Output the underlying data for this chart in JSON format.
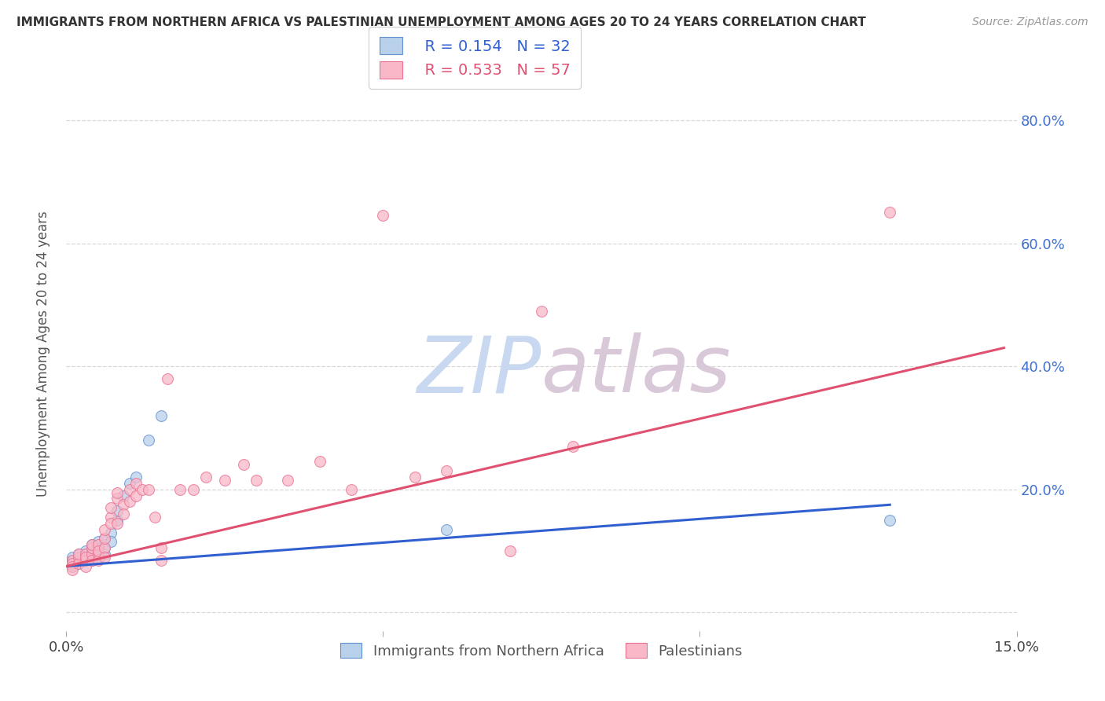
{
  "title": "IMMIGRANTS FROM NORTHERN AFRICA VS PALESTINIAN UNEMPLOYMENT AMONG AGES 20 TO 24 YEARS CORRELATION CHART",
  "source": "Source: ZipAtlas.com",
  "ylabel": "Unemployment Among Ages 20 to 24 years",
  "right_ytick_vals": [
    0.8,
    0.6,
    0.4,
    0.2
  ],
  "right_ytick_labels": [
    "80.0%",
    "60.0%",
    "40.0%",
    "20.0%"
  ],
  "legend_blue_label": "Immigrants from Northern Africa",
  "legend_pink_label": "Palestinians",
  "legend_blue_R": "R = 0.154",
  "legend_blue_N": "N = 32",
  "legend_pink_R": "R = 0.533",
  "legend_pink_N": "N = 57",
  "blue_face_color": "#b8d0ea",
  "pink_face_color": "#f8b8c8",
  "blue_edge_color": "#6090d0",
  "pink_edge_color": "#e87090",
  "blue_line_color": "#3060d0",
  "pink_line_color": "#e05070",
  "title_color": "#333333",
  "source_color": "#999999",
  "axis_label_color": "#555555",
  "right_tick_color": "#4070d0",
  "watermark_zip_color": "#c8d8f0",
  "watermark_atlas_color": "#d8c8d8",
  "xlim": [
    0.0,
    0.15
  ],
  "ylim": [
    -0.03,
    0.87
  ],
  "xtick_positions": [
    0.0,
    0.05,
    0.1,
    0.15
  ],
  "xtick_labels": [
    "0.0%",
    "",
    "",
    "15.0%"
  ],
  "ytick_positions": [
    0.0,
    0.2,
    0.4,
    0.6,
    0.8
  ],
  "blue_scatter_x": [
    0.001,
    0.001,
    0.001,
    0.002,
    0.002,
    0.002,
    0.003,
    0.003,
    0.003,
    0.003,
    0.004,
    0.004,
    0.004,
    0.004,
    0.005,
    0.005,
    0.005,
    0.005,
    0.006,
    0.006,
    0.006,
    0.007,
    0.007,
    0.008,
    0.008,
    0.009,
    0.01,
    0.011,
    0.013,
    0.015,
    0.06,
    0.13
  ],
  "blue_scatter_y": [
    0.085,
    0.09,
    0.075,
    0.095,
    0.085,
    0.08,
    0.09,
    0.095,
    0.085,
    0.1,
    0.09,
    0.1,
    0.085,
    0.11,
    0.095,
    0.105,
    0.09,
    0.115,
    0.095,
    0.105,
    0.12,
    0.13,
    0.115,
    0.15,
    0.165,
    0.19,
    0.21,
    0.22,
    0.28,
    0.32,
    0.135,
    0.15
  ],
  "pink_scatter_x": [
    0.001,
    0.001,
    0.001,
    0.001,
    0.002,
    0.002,
    0.002,
    0.003,
    0.003,
    0.003,
    0.003,
    0.004,
    0.004,
    0.004,
    0.004,
    0.005,
    0.005,
    0.005,
    0.005,
    0.006,
    0.006,
    0.006,
    0.006,
    0.007,
    0.007,
    0.007,
    0.008,
    0.008,
    0.008,
    0.009,
    0.009,
    0.01,
    0.01,
    0.011,
    0.011,
    0.012,
    0.013,
    0.014,
    0.015,
    0.015,
    0.016,
    0.018,
    0.02,
    0.022,
    0.025,
    0.028,
    0.03,
    0.035,
    0.04,
    0.045,
    0.05,
    0.055,
    0.06,
    0.07,
    0.075,
    0.08,
    0.13
  ],
  "pink_scatter_y": [
    0.085,
    0.08,
    0.075,
    0.07,
    0.09,
    0.08,
    0.095,
    0.095,
    0.085,
    0.09,
    0.075,
    0.095,
    0.105,
    0.085,
    0.11,
    0.095,
    0.11,
    0.085,
    0.1,
    0.105,
    0.12,
    0.135,
    0.09,
    0.155,
    0.145,
    0.17,
    0.185,
    0.145,
    0.195,
    0.175,
    0.16,
    0.2,
    0.18,
    0.19,
    0.21,
    0.2,
    0.2,
    0.155,
    0.105,
    0.085,
    0.38,
    0.2,
    0.2,
    0.22,
    0.215,
    0.24,
    0.215,
    0.215,
    0.245,
    0.2,
    0.645,
    0.22,
    0.23,
    0.1,
    0.49,
    0.27,
    0.65
  ],
  "blue_trend_x": [
    0.0,
    0.13
  ],
  "blue_trend_y": [
    0.075,
    0.175
  ],
  "pink_trend_x": [
    0.0,
    0.148
  ],
  "pink_trend_y": [
    0.075,
    0.43
  ],
  "grid_color": "#d8d8d8",
  "background_color": "#ffffff",
  "marker_size": 100
}
